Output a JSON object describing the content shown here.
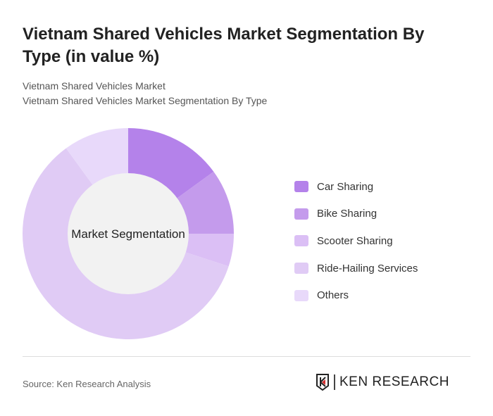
{
  "title": "Vietnam Shared Vehicles Market Segmentation By Type (in value %)",
  "subtitle1": "Vietnam Shared Vehicles Market",
  "subtitle2": "Vietnam Shared Vehicles Market Segmentation By Type",
  "source": "Source: Ken Research Analysis",
  "logo_text": "KEN RESEARCH",
  "chart_data": {
    "type": "pie",
    "donut": true,
    "center_label": "Market Segmentation",
    "legend_position": "right",
    "categories": [
      "Car Sharing",
      "Bike Sharing",
      "Scooter Sharing",
      "Ride-Hailing Services",
      "Others"
    ],
    "values": [
      15,
      10,
      5,
      60,
      10
    ],
    "colors": [
      "#b482ea",
      "#c49bec",
      "#dbbff5",
      "#e0cbf5",
      "#e8d9fa"
    ]
  }
}
